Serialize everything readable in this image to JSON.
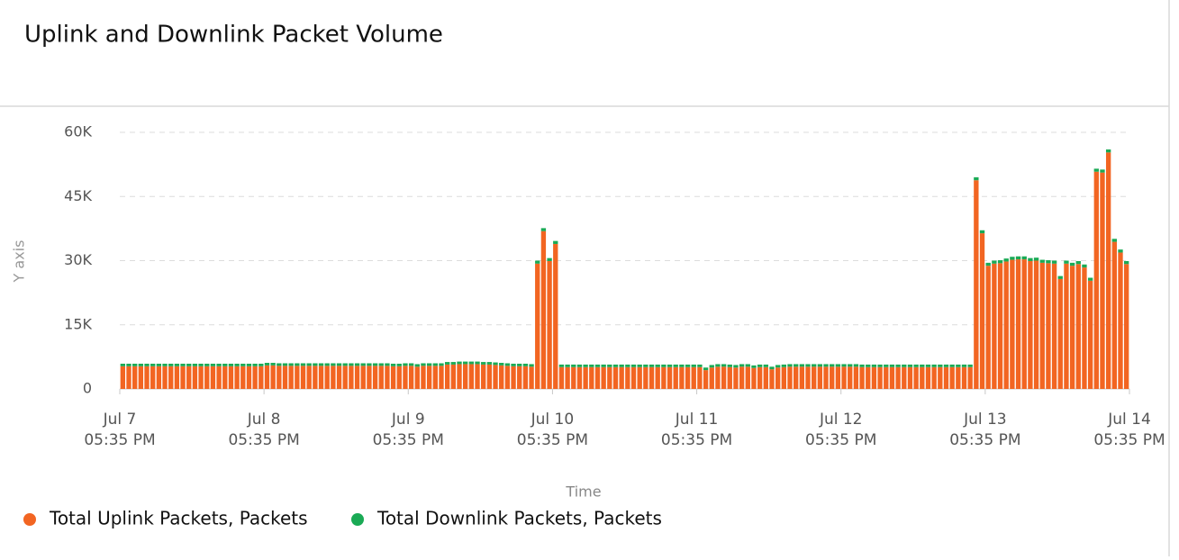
{
  "chart_data": {
    "type": "bar",
    "stacked": true,
    "title": "Uplink and Downlink Packet Volume",
    "xlabel": "Time",
    "ylabel": "Y axis",
    "x": [
      "Jul 7 05:35 PM",
      "Jul 7 06:35 PM",
      "Jul 7 07:35 PM",
      "Jul 7 08:35 PM",
      "Jul 7 09:35 PM",
      "Jul 7 10:35 PM",
      "Jul 7 11:35 PM",
      "Jul 8 12:35 AM",
      "Jul 8 01:35 AM",
      "Jul 8 02:35 AM",
      "Jul 8 03:35 AM",
      "Jul 8 04:35 AM",
      "Jul 8 05:35 AM",
      "Jul 8 06:35 AM",
      "Jul 8 07:35 AM",
      "Jul 8 08:35 AM",
      "Jul 8 09:35 AM",
      "Jul 8 10:35 AM",
      "Jul 8 11:35 AM",
      "Jul 8 12:35 PM",
      "Jul 8 01:35 PM",
      "Jul 8 02:35 PM",
      "Jul 8 03:35 PM",
      "Jul 8 04:35 PM",
      "Jul 8 05:35 PM",
      "Jul 8 06:35 PM",
      "Jul 8 07:35 PM",
      "Jul 8 08:35 PM",
      "Jul 8 09:35 PM",
      "Jul 8 10:35 PM",
      "Jul 8 11:35 PM",
      "Jul 9 12:35 AM",
      "Jul 9 01:35 AM",
      "Jul 9 02:35 AM",
      "Jul 9 03:35 AM",
      "Jul 9 04:35 AM",
      "Jul 9 05:35 AM",
      "Jul 9 06:35 AM",
      "Jul 9 07:35 AM",
      "Jul 9 08:35 AM",
      "Jul 9 09:35 AM",
      "Jul 9 10:35 AM",
      "Jul 9 11:35 AM",
      "Jul 9 12:35 PM",
      "Jul 9 01:35 PM",
      "Jul 9 02:35 PM",
      "Jul 9 03:35 PM",
      "Jul 9 04:35 PM",
      "Jul 9 05:35 PM",
      "Jul 9 06:35 PM",
      "Jul 9 07:35 PM",
      "Jul 9 08:35 PM",
      "Jul 9 09:35 PM",
      "Jul 9 10:35 PM",
      "Jul 9 11:35 PM",
      "Jul 10 12:35 AM",
      "Jul 10 01:35 AM",
      "Jul 10 02:35 AM",
      "Jul 10 03:35 AM",
      "Jul 10 04:35 AM",
      "Jul 10 05:35 AM",
      "Jul 10 06:35 AM",
      "Jul 10 07:35 AM",
      "Jul 10 08:35 AM",
      "Jul 10 09:35 AM",
      "Jul 10 10:35 AM",
      "Jul 10 11:35 AM",
      "Jul 10 12:35 PM",
      "Jul 10 01:35 PM",
      "Jul 10 02:35 PM",
      "Jul 10 03:35 PM",
      "Jul 10 04:35 PM",
      "Jul 10 05:35 PM",
      "Jul 10 06:35 PM",
      "Jul 10 07:35 PM",
      "Jul 10 08:35 PM",
      "Jul 10 09:35 PM",
      "Jul 10 10:35 PM",
      "Jul 10 11:35 PM",
      "Jul 11 12:35 AM",
      "Jul 11 01:35 AM",
      "Jul 11 02:35 AM",
      "Jul 11 03:35 AM",
      "Jul 11 04:35 AM",
      "Jul 11 05:35 AM",
      "Jul 11 06:35 AM",
      "Jul 11 07:35 AM",
      "Jul 11 08:35 AM",
      "Jul 11 09:35 AM",
      "Jul 11 10:35 AM",
      "Jul 11 11:35 AM",
      "Jul 11 12:35 PM",
      "Jul 11 01:35 PM",
      "Jul 11 02:35 PM",
      "Jul 11 03:35 PM",
      "Jul 11 04:35 PM",
      "Jul 11 05:35 PM",
      "Jul 11 06:35 PM",
      "Jul 11 07:35 PM",
      "Jul 11 08:35 PM",
      "Jul 11 09:35 PM",
      "Jul 11 10:35 PM",
      "Jul 11 11:35 PM",
      "Jul 12 12:35 AM",
      "Jul 12 01:35 AM",
      "Jul 12 02:35 AM",
      "Jul 12 03:35 AM",
      "Jul 12 04:35 AM",
      "Jul 12 05:35 AM",
      "Jul 12 06:35 AM",
      "Jul 12 07:35 AM",
      "Jul 12 08:35 AM",
      "Jul 12 09:35 AM",
      "Jul 12 10:35 AM",
      "Jul 12 11:35 AM",
      "Jul 12 12:35 PM",
      "Jul 12 01:35 PM",
      "Jul 12 02:35 PM",
      "Jul 12 03:35 PM",
      "Jul 12 04:35 PM",
      "Jul 12 05:35 PM",
      "Jul 12 06:35 PM",
      "Jul 12 07:35 PM",
      "Jul 12 08:35 PM",
      "Jul 12 09:35 PM",
      "Jul 12 10:35 PM",
      "Jul 12 11:35 PM",
      "Jul 13 12:35 AM",
      "Jul 13 01:35 AM",
      "Jul 13 02:35 AM",
      "Jul 13 03:35 AM",
      "Jul 13 04:35 AM",
      "Jul 13 05:35 AM",
      "Jul 13 06:35 AM",
      "Jul 13 07:35 AM",
      "Jul 13 08:35 AM",
      "Jul 13 09:35 AM",
      "Jul 13 10:35 AM",
      "Jul 13 11:35 AM",
      "Jul 13 12:35 PM",
      "Jul 13 01:35 PM",
      "Jul 13 02:35 PM",
      "Jul 13 03:35 PM",
      "Jul 13 04:35 PM",
      "Jul 13 05:35 PM",
      "Jul 13 06:35 PM",
      "Jul 13 07:35 PM",
      "Jul 13 08:35 PM",
      "Jul 13 09:35 PM",
      "Jul 13 10:35 PM",
      "Jul 13 11:35 PM",
      "Jul 14 12:35 AM",
      "Jul 14 01:35 AM",
      "Jul 14 02:35 AM",
      "Jul 14 03:35 AM",
      "Jul 14 04:35 AM",
      "Jul 14 05:35 AM",
      "Jul 14 06:35 AM",
      "Jul 14 07:35 AM",
      "Jul 14 08:35 AM",
      "Jul 14 09:35 AM",
      "Jul 14 10:35 AM",
      "Jul 14 11:35 AM",
      "Jul 14 12:35 PM",
      "Jul 14 01:35 PM",
      "Jul 14 02:35 PM",
      "Jul 14 03:35 PM",
      "Jul 14 04:35 PM"
    ],
    "series": [
      {
        "name": "Total Uplink Packets, Packets",
        "color": "#f26522",
        "values": [
          5300,
          5300,
          5300,
          5300,
          5300,
          5300,
          5300,
          5300,
          5300,
          5300,
          5300,
          5300,
          5300,
          5300,
          5300,
          5300,
          5300,
          5300,
          5300,
          5300,
          5300,
          5300,
          5300,
          5300,
          5500,
          5500,
          5400,
          5400,
          5400,
          5400,
          5400,
          5400,
          5400,
          5400,
          5400,
          5400,
          5400,
          5400,
          5400,
          5400,
          5400,
          5400,
          5400,
          5400,
          5400,
          5300,
          5300,
          5400,
          5400,
          5200,
          5400,
          5400,
          5400,
          5400,
          5700,
          5700,
          5800,
          5800,
          5800,
          5800,
          5700,
          5700,
          5600,
          5500,
          5400,
          5300,
          5300,
          5300,
          5200,
          29300,
          36900,
          29900,
          33900,
          5100,
          5100,
          5100,
          5100,
          5100,
          5100,
          5100,
          5100,
          5100,
          5100,
          5100,
          5100,
          5100,
          5100,
          5100,
          5100,
          5100,
          5100,
          5100,
          5100,
          5100,
          5100,
          5100,
          5100,
          4400,
          5000,
          5200,
          5200,
          5100,
          5000,
          5200,
          5200,
          4900,
          5100,
          5100,
          4600,
          5000,
          5100,
          5200,
          5200,
          5200,
          5200,
          5200,
          5200,
          5200,
          5200,
          5200,
          5200,
          5200,
          5200,
          5100,
          5100,
          5100,
          5100,
          5100,
          5100,
          5100,
          5100,
          5100,
          5100,
          5100,
          5100,
          5100,
          5100,
          5100,
          5100,
          5100,
          5100,
          5100,
          48800,
          36400,
          28800,
          29300,
          29400,
          29800,
          30200,
          30300,
          30300,
          29900,
          30000,
          29500,
          29400,
          29300,
          25700,
          29300,
          28800,
          29200,
          28400,
          25300,
          50800,
          50600,
          55300,
          34400,
          31900,
          29200
        ]
      },
      {
        "name": "Total Downlink Packets, Packets",
        "color": "#1aaa55",
        "values": [
          600,
          600,
          600,
          600,
          600,
          600,
          600,
          600,
          600,
          600,
          600,
          600,
          600,
          600,
          600,
          600,
          600,
          600,
          600,
          600,
          600,
          600,
          600,
          600,
          600,
          600,
          600,
          600,
          600,
          600,
          600,
          600,
          600,
          600,
          600,
          600,
          600,
          600,
          600,
          600,
          600,
          600,
          600,
          600,
          600,
          600,
          600,
          600,
          600,
          600,
          600,
          600,
          600,
          600,
          600,
          600,
          600,
          600,
          600,
          600,
          600,
          600,
          600,
          600,
          600,
          600,
          600,
          600,
          600,
          700,
          700,
          700,
          700,
          600,
          600,
          600,
          600,
          600,
          600,
          600,
          600,
          600,
          600,
          600,
          600,
          600,
          600,
          600,
          600,
          600,
          600,
          600,
          600,
          600,
          600,
          600,
          600,
          600,
          600,
          600,
          600,
          600,
          600,
          600,
          600,
          600,
          600,
          600,
          600,
          600,
          600,
          600,
          600,
          600,
          600,
          600,
          600,
          600,
          600,
          600,
          600,
          600,
          600,
          600,
          600,
          600,
          600,
          600,
          600,
          600,
          600,
          600,
          600,
          600,
          600,
          600,
          600,
          600,
          600,
          600,
          600,
          600,
          700,
          700,
          700,
          700,
          700,
          700,
          700,
          700,
          700,
          700,
          700,
          700,
          700,
          700,
          700,
          700,
          700,
          700,
          700,
          700,
          700,
          700,
          700,
          700,
          700,
          700
        ]
      }
    ],
    "xlim": [
      "Jul 7 05:35 PM",
      "Jul 14 05:35 PM"
    ],
    "xticks": [
      "Jul 7 05:35 PM",
      "Jul 8 05:35 PM",
      "Jul 9 05:35 PM",
      "Jul 10 05:35 PM",
      "Jul 11 05:35 PM",
      "Jul 12 05:35 PM",
      "Jul 13 05:35 PM",
      "Jul 14 05:35 PM"
    ],
    "ylim": [
      0,
      60000
    ],
    "yticks": [
      0,
      {
        "value": 15000,
        "label": "15K"
      },
      {
        "value": 30000,
        "label": "30K"
      },
      {
        "value": 45000,
        "label": "45K"
      },
      {
        "value": 60000,
        "label": "60K"
      }
    ],
    "grid": true,
    "legend": "bottom-left"
  }
}
